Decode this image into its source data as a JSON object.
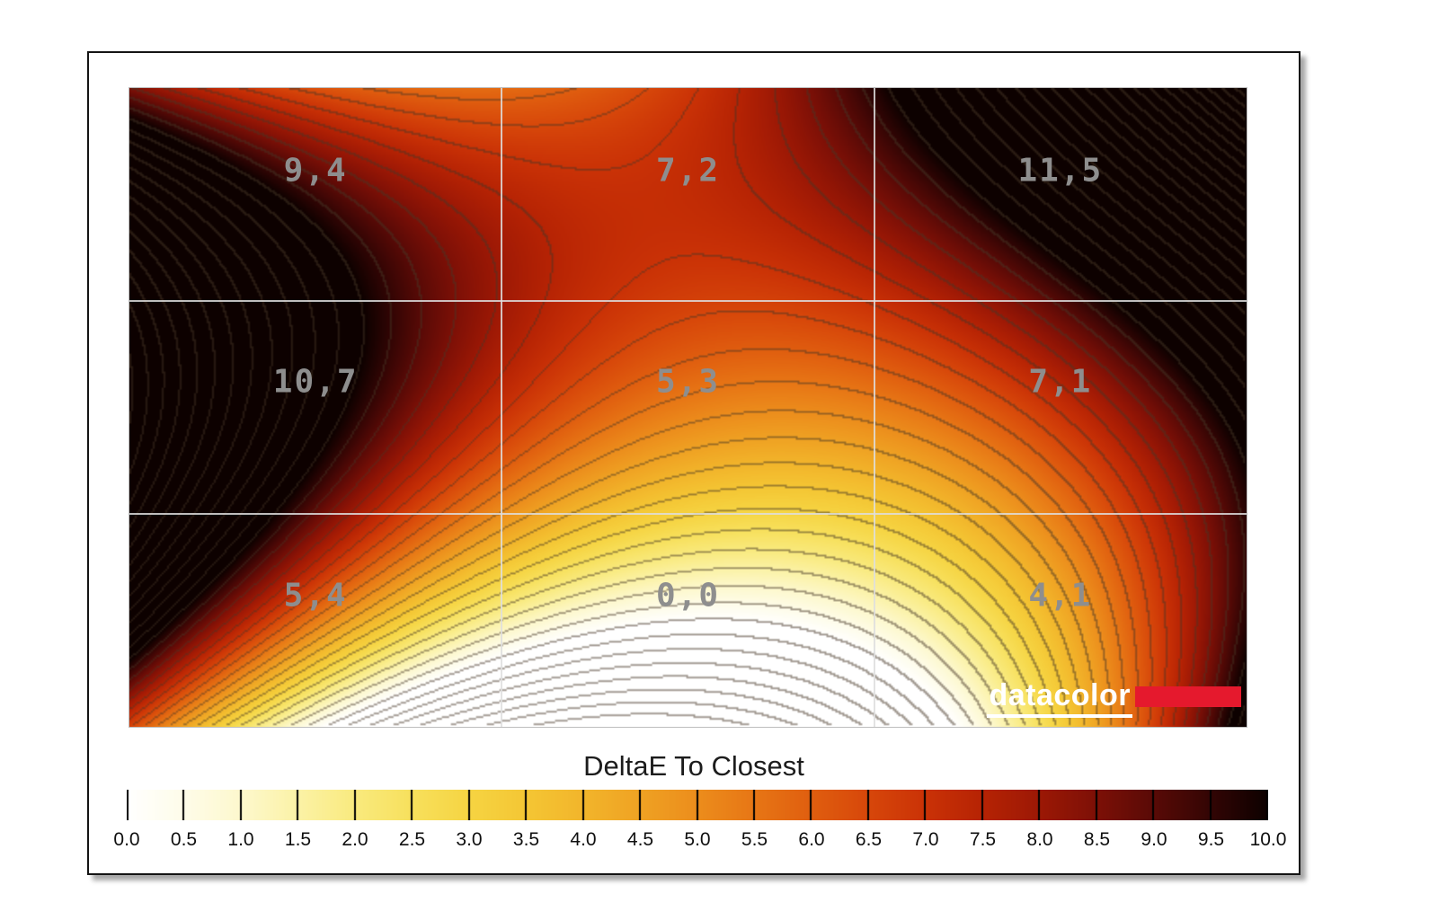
{
  "chart_data": {
    "type": "heatmap",
    "title": "DeltaE To Closest",
    "rows": 3,
    "cols": 3,
    "values": [
      [
        9.4,
        7.2,
        11.5
      ],
      [
        10.7,
        5.3,
        7.1
      ],
      [
        5.4,
        0.0,
        4.1
      ]
    ],
    "cell_labels": [
      [
        "9,4",
        "7,2",
        "11,5"
      ],
      [
        "10,7",
        "5,3",
        "7,1"
      ],
      [
        "5,4",
        "0,0",
        "4,1"
      ]
    ],
    "contour_interval": 0.5,
    "grid": "3x3 white dividers",
    "colorbar": {
      "min": 0.0,
      "max": 10.0,
      "tick_step": 0.5,
      "tick_labels": [
        "0.0",
        "0.5",
        "1.0",
        "1.5",
        "2.0",
        "2.5",
        "3.0",
        "3.5",
        "4.0",
        "4.5",
        "5.0",
        "5.5",
        "6.0",
        "6.5",
        "7.0",
        "7.5",
        "8.0",
        "8.5",
        "9.0",
        "9.5",
        "10.0"
      ]
    },
    "colormap": [
      {
        "v": 0.0,
        "c": "#ffffff"
      },
      {
        "v": 0.5,
        "c": "#fefce9"
      },
      {
        "v": 1.0,
        "c": "#fdf8cd"
      },
      {
        "v": 1.5,
        "c": "#fbf2a6"
      },
      {
        "v": 2.0,
        "c": "#f9ea7e"
      },
      {
        "v": 2.5,
        "c": "#f7e05c"
      },
      {
        "v": 3.0,
        "c": "#f6d442"
      },
      {
        "v": 3.5,
        "c": "#f4c634"
      },
      {
        "v": 4.0,
        "c": "#f2b52b"
      },
      {
        "v": 4.5,
        "c": "#efa223"
      },
      {
        "v": 5.0,
        "c": "#ec8d1c"
      },
      {
        "v": 5.5,
        "c": "#e77615"
      },
      {
        "v": 6.0,
        "c": "#e05e0f"
      },
      {
        "v": 6.5,
        "c": "#d7470a"
      },
      {
        "v": 7.0,
        "c": "#ca3206"
      },
      {
        "v": 7.5,
        "c": "#b62304"
      },
      {
        "v": 8.0,
        "c": "#9c1805"
      },
      {
        "v": 8.5,
        "c": "#7d1006"
      },
      {
        "v": 9.0,
        "c": "#590a06"
      },
      {
        "v": 9.5,
        "c": "#330504"
      },
      {
        "v": 10.0,
        "c": "#0d0100"
      }
    ],
    "style": {
      "contour_color": "#463626",
      "contour_alpha": 0.5,
      "grid_line_color": "#dedede",
      "value_label_color": "#8e8e8e",
      "tick_separator_color": "#000000"
    }
  },
  "branding": {
    "logo_text": "datacolor",
    "logo_accent_color": "#e5192d"
  }
}
